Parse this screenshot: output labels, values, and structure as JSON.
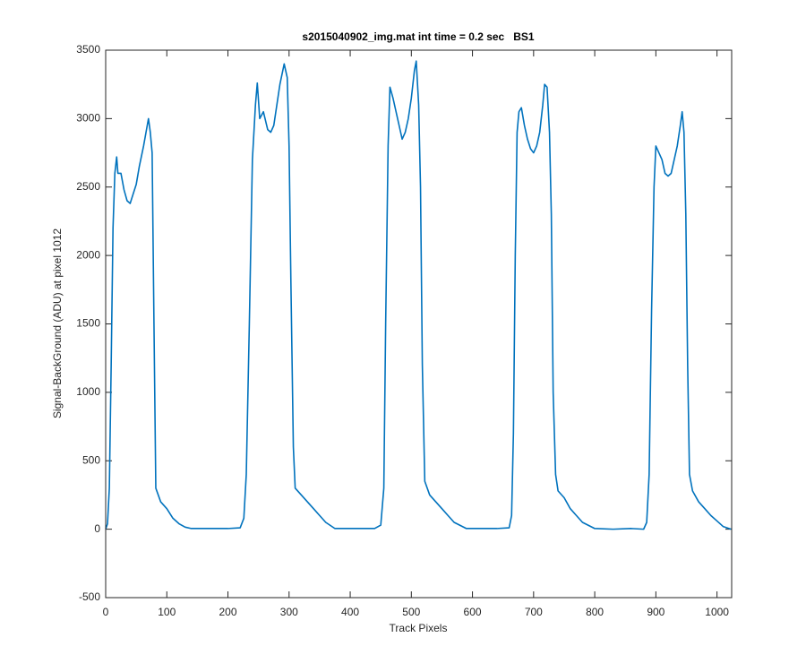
{
  "chart_data": {
    "type": "line",
    "title": "s2015040902_img.mat int time = 0.2 sec   BS1",
    "xlabel": "Track Pixels",
    "ylabel": "Signal-BackGround (ADU) at pixel 1012",
    "xlim": [
      0,
      1024
    ],
    "ylim": [
      -500,
      3500
    ],
    "xticks": [
      0,
      100,
      200,
      300,
      400,
      500,
      600,
      700,
      800,
      900,
      1000
    ],
    "yticks": [
      -500,
      0,
      500,
      1000,
      1500,
      2000,
      2500,
      3000,
      3500
    ],
    "grid": false,
    "series": [
      {
        "color": "#0072bd",
        "x": [
          0,
          3,
          6,
          9,
          12,
          15,
          18,
          20,
          25,
          30,
          35,
          40,
          45,
          50,
          55,
          62,
          66,
          70,
          73,
          76,
          79,
          82,
          90,
          100,
          110,
          120,
          130,
          140,
          160,
          180,
          200,
          220,
          226,
          230,
          235,
          240,
          245,
          248,
          252,
          258,
          265,
          270,
          275,
          280,
          285,
          292,
          297,
          300,
          303,
          307,
          310,
          320,
          330,
          340,
          350,
          360,
          375,
          400,
          420,
          440,
          450,
          455,
          458,
          462,
          465,
          470,
          475,
          480,
          485,
          490,
          495,
          500,
          505,
          508,
          512,
          515,
          518,
          522,
          530,
          540,
          550,
          560,
          570,
          590,
          620,
          640,
          660,
          664,
          667,
          670,
          673,
          676,
          680,
          685,
          690,
          695,
          700,
          705,
          710,
          715,
          718,
          722,
          726,
          729,
          732,
          736,
          740,
          750,
          760,
          770,
          780,
          800,
          830,
          860,
          880,
          885,
          889,
          893,
          897,
          900,
          905,
          910,
          915,
          920,
          925,
          930,
          935,
          940,
          943,
          946,
          949,
          952,
          955,
          960,
          970,
          980,
          990,
          1000,
          1010,
          1023
        ],
        "values": [
          0,
          40,
          300,
          1200,
          2200,
          2600,
          2720,
          2600,
          2600,
          2480,
          2400,
          2380,
          2450,
          2520,
          2650,
          2800,
          2900,
          3000,
          2900,
          2750,
          1500,
          300,
          200,
          150,
          80,
          40,
          15,
          5,
          5,
          5,
          5,
          10,
          80,
          400,
          1500,
          2700,
          3100,
          3260,
          3000,
          3050,
          2920,
          2900,
          2950,
          3100,
          3250,
          3400,
          3300,
          2800,
          1800,
          600,
          300,
          250,
          200,
          150,
          100,
          50,
          5,
          5,
          5,
          5,
          30,
          300,
          1500,
          2800,
          3230,
          3150,
          3050,
          2950,
          2850,
          2900,
          3000,
          3150,
          3350,
          3420,
          3100,
          2500,
          1200,
          350,
          250,
          200,
          150,
          100,
          50,
          5,
          5,
          5,
          10,
          100,
          700,
          2000,
          2900,
          3050,
          3080,
          2950,
          2850,
          2780,
          2750,
          2800,
          2900,
          3100,
          3250,
          3230,
          2900,
          2300,
          1000,
          400,
          280,
          230,
          150,
          100,
          50,
          5,
          0,
          5,
          0,
          50,
          400,
          1600,
          2500,
          2800,
          2750,
          2700,
          2600,
          2580,
          2600,
          2700,
          2800,
          2950,
          3050,
          2900,
          2300,
          1200,
          400,
          280,
          200,
          150,
          100,
          60,
          20,
          0
        ]
      }
    ]
  }
}
